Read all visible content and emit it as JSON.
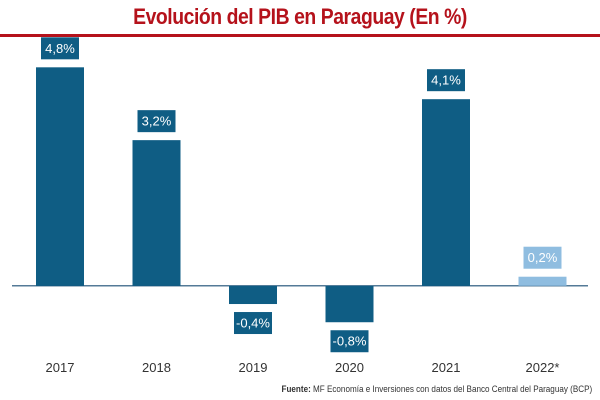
{
  "chart_data": {
    "type": "bar",
    "title": "Evolución del PIB en Paraguay (En %)",
    "categories": [
      "2017",
      "2018",
      "2019",
      "2020",
      "2021",
      "2022*"
    ],
    "values": [
      4.8,
      3.2,
      -0.4,
      -0.8,
      4.1,
      0.2
    ],
    "data_labels": [
      "4,8%",
      "3,2%",
      "-0,4%",
      "-0,8%",
      "4,1%",
      "0,2%"
    ],
    "xlabel": "",
    "ylabel": "",
    "ylim": [
      -1.3,
      5.4
    ],
    "grid": false,
    "legend": "none",
    "highlight_index": 5
  },
  "colors": {
    "title": "#b5121b",
    "rule": "#b5121b",
    "bar": "#0f5d84",
    "bar_highlight": "#8fbde0",
    "axis": "#1c4f75",
    "label_text": "#ffffff",
    "tick_text": "#333333"
  },
  "source": {
    "label": "Fuente:",
    "text": "MF Economía e Inversiones con datos del Banco Central del Paraguay (BCP)"
  }
}
